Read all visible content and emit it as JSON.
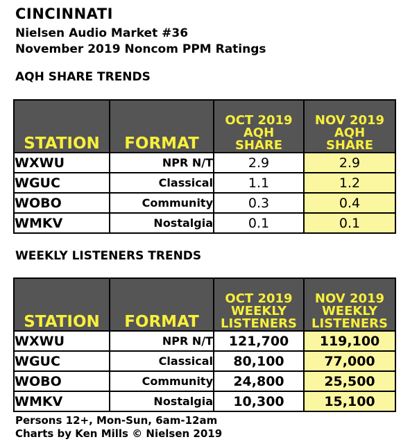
{
  "header": {
    "city": "CINCINNATI",
    "market": "Nielsen Audio Market #36",
    "period": "November 2019 Noncom PPM Ratings"
  },
  "aqh": {
    "section_title": "AQH SHARE TRENDS",
    "col_station": "STATION",
    "col_format": "FORMAT",
    "col_oct": [
      "OCT 2019",
      "AQH",
      "SHARE"
    ],
    "col_nov": [
      "NOV 2019",
      "AQH",
      "SHARE"
    ]
  },
  "weekly": {
    "section_title": "WEEKLY LISTENERS TRENDS",
    "col_station": "STATION",
    "col_format": "FORMAT",
    "col_oct": [
      "OCT 2019",
      "WEEKLY",
      "LISTENERS"
    ],
    "col_nov": [
      "NOV 2019",
      "WEEKLY",
      "LISTENERS"
    ]
  },
  "footer": {
    "line1": "Persons 12+, Mon-Sun, 6am-12am",
    "line2": "Charts by Ken Mills © Nielsen 2019"
  },
  "colors": {
    "header_bg": "#555555",
    "header_text": "#f8ef3c",
    "highlight": "#fbf6a0"
  },
  "chart_data": [
    {
      "type": "table",
      "title": "AQH SHARE TRENDS",
      "columns": [
        "STATION",
        "FORMAT",
        "OCT 2019 AQH SHARE",
        "NOV 2019 AQH SHARE"
      ],
      "rows": [
        [
          "WXWU",
          "NPR N/T",
          "2.9",
          "2.9"
        ],
        [
          "WGUC",
          "Classical",
          "1.1",
          "1.2"
        ],
        [
          "WOBO",
          "Community",
          "0.3",
          "0.4"
        ],
        [
          "WMKV",
          "Nostalgia",
          "0.1",
          "0.1"
        ]
      ]
    },
    {
      "type": "table",
      "title": "WEEKLY LISTENERS TRENDS",
      "columns": [
        "STATION",
        "FORMAT",
        "OCT 2019 WEEKLY LISTENERS",
        "NOV 2019 WEEKLY LISTENERS"
      ],
      "rows": [
        [
          "WXWU",
          "NPR N/T",
          "121,700",
          "119,100"
        ],
        [
          "WGUC",
          "Classical",
          "80,100",
          "77,000"
        ],
        [
          "WOBO",
          "Community",
          "24,800",
          "25,500"
        ],
        [
          "WMKV",
          "Nostalgia",
          "10,300",
          "15,100"
        ]
      ]
    }
  ]
}
